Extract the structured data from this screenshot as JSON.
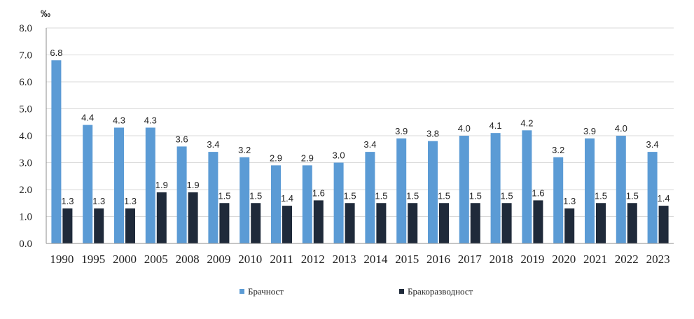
{
  "chart_data": {
    "type": "bar",
    "unit_label": "‰",
    "categories": [
      "1990",
      "1995",
      "2000",
      "2005",
      "2008",
      "2009",
      "2010",
      "2011",
      "2012",
      "2013",
      "2014",
      "2015",
      "2016",
      "2017",
      "2018",
      "2019",
      "2020",
      "2021",
      "2022",
      "2023"
    ],
    "series": [
      {
        "name": "Брачност",
        "color": "#5b9bd5",
        "values": [
          6.8,
          4.4,
          4.3,
          4.3,
          3.6,
          3.4,
          3.2,
          2.9,
          2.9,
          3.0,
          3.4,
          3.9,
          3.8,
          4.0,
          4.1,
          4.2,
          3.2,
          3.9,
          4.0,
          3.4
        ]
      },
      {
        "name": "Бракоразводност",
        "color": "#1f2a3a",
        "values": [
          1.3,
          1.3,
          1.3,
          1.9,
          1.9,
          1.5,
          1.5,
          1.4,
          1.6,
          1.5,
          1.5,
          1.5,
          1.5,
          1.5,
          1.5,
          1.6,
          1.3,
          1.5,
          1.5,
          1.4
        ]
      }
    ],
    "ylim": [
      0,
      8
    ],
    "yticks": [
      "0.0",
      "1.0",
      "2.0",
      "3.0",
      "4.0",
      "5.0",
      "6.0",
      "7.0",
      "8.0"
    ],
    "grid": true,
    "legend_position": "bottom"
  }
}
